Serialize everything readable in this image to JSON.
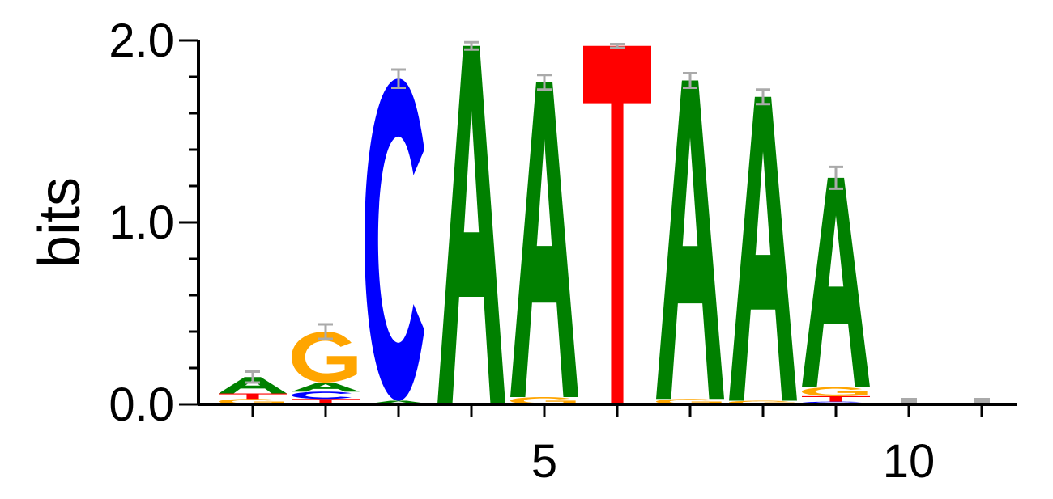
{
  "chart_data": {
    "type": "sequence-logo",
    "ylabel": "bits",
    "xlabel": "",
    "ylim": [
      0,
      2
    ],
    "yticks": [
      "0.0",
      "1.0",
      "2.0"
    ],
    "xticks": [
      "5",
      "10"
    ],
    "xtick_positions": [
      5,
      10
    ],
    "colors": {
      "A": "#008000",
      "C": "#0000ff",
      "G": "#ffa500",
      "T": "#ff0000",
      "error_bar": "#aaaaaa"
    },
    "positions": [
      {
        "pos": 1,
        "letters": [
          {
            "l": "G",
            "h": 0.03
          },
          {
            "l": "T",
            "h": 0.03
          },
          {
            "l": "A",
            "h": 0.09
          }
        ],
        "error": 0.03
      },
      {
        "pos": 2,
        "letters": [
          {
            "l": "T",
            "h": 0.03
          },
          {
            "l": "C",
            "h": 0.04
          },
          {
            "l": "A",
            "h": 0.05
          },
          {
            "l": "G",
            "h": 0.28
          }
        ],
        "error": 0.04
      },
      {
        "pos": 3,
        "letters": [
          {
            "l": "A",
            "h": 0.02
          },
          {
            "l": "C",
            "h": 1.77
          }
        ],
        "error": 0.05
      },
      {
        "pos": 4,
        "letters": [
          {
            "l": "A",
            "h": 1.97
          }
        ],
        "error": 0.02
      },
      {
        "pos": 5,
        "letters": [
          {
            "l": "G",
            "h": 0.04
          },
          {
            "l": "A",
            "h": 1.73
          }
        ],
        "error": 0.04
      },
      {
        "pos": 6,
        "letters": [
          {
            "l": "T",
            "h": 1.97
          }
        ],
        "error": 0.01
      },
      {
        "pos": 7,
        "letters": [
          {
            "l": "G",
            "h": 0.03
          },
          {
            "l": "A",
            "h": 1.75
          }
        ],
        "error": 0.04
      },
      {
        "pos": 8,
        "letters": [
          {
            "l": "G",
            "h": 0.02
          },
          {
            "l": "A",
            "h": 1.67
          }
        ],
        "error": 0.04
      },
      {
        "pos": 9,
        "letters": [
          {
            "l": "C",
            "h": 0.015
          },
          {
            "l": "T",
            "h": 0.03
          },
          {
            "l": "G",
            "h": 0.05
          },
          {
            "l": "A",
            "h": 1.15
          }
        ],
        "error": 0.06
      },
      {
        "pos": 10,
        "letters": [],
        "error": 0.02
      },
      {
        "pos": 11,
        "letters": [],
        "error": 0.02
      }
    ]
  }
}
